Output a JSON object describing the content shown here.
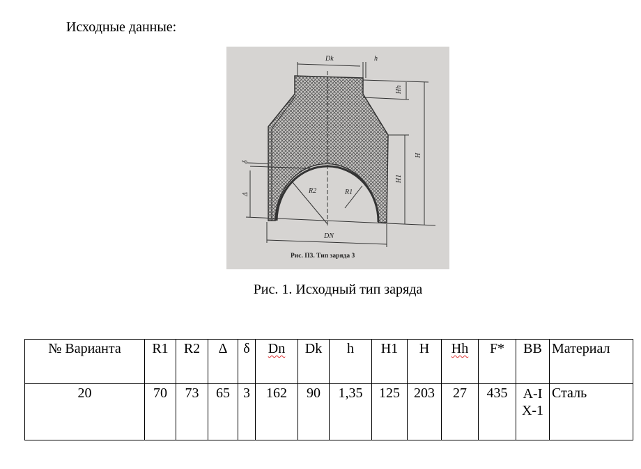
{
  "heading": "Исходные данные:",
  "figure": {
    "labels": {
      "dk": "Dk",
      "h": "h",
      "hh": "Hh",
      "h_total": "H",
      "h1": "H1",
      "delta_small": "δ",
      "delta": "Δ",
      "r2": "R2",
      "r1": "R1",
      "dn": "DN"
    },
    "photo_caption": "Рис. П3. Тип заряда 3"
  },
  "caption": "Рис. 1. Исходный тип заряда",
  "table": {
    "headers": [
      "№ Варианта",
      "R1",
      "R2",
      "Δ",
      "δ",
      "Dn",
      "Dk",
      "h",
      "H1",
      "H",
      "Hh",
      "F*",
      "BB",
      "Материал"
    ],
    "row": [
      "20",
      "70",
      "73",
      "65",
      "3",
      "162",
      "90",
      "1,35",
      "125",
      "203",
      "27",
      "435",
      "A-IX-1",
      "Сталь"
    ]
  }
}
